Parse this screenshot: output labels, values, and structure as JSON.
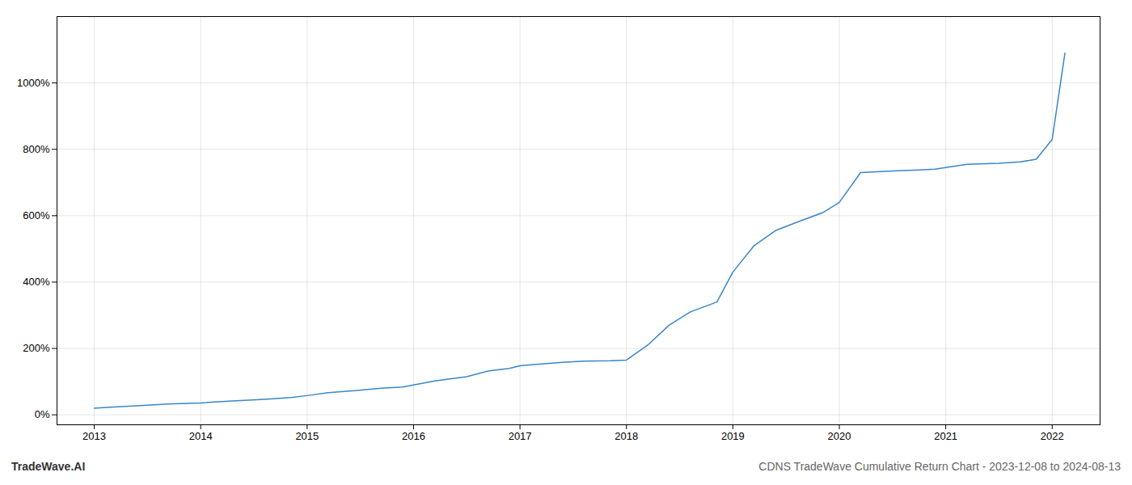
{
  "chart_data": {
    "type": "line",
    "title": "CDNS TradeWave Cumulative Return Chart - 2023-12-08 to 2024-08-13",
    "annotations": [
      "TradeWave.AI"
    ],
    "x": [
      2013.0,
      2013.15,
      2013.4,
      2013.7,
      2014.0,
      2014.3,
      2014.6,
      2014.85,
      2015.0,
      2015.2,
      2015.45,
      2015.7,
      2015.9,
      2016.0,
      2016.2,
      2016.5,
      2016.7,
      2016.9,
      2017.0,
      2017.15,
      2017.4,
      2017.6,
      2017.85,
      2018.0,
      2018.2,
      2018.4,
      2018.6,
      2018.85,
      2019.0,
      2019.2,
      2019.4,
      2019.6,
      2019.85,
      2020.0,
      2020.2,
      2020.5,
      2020.75,
      2020.9,
      2021.0,
      2021.2,
      2021.5,
      2021.7,
      2021.85,
      2022.0,
      2022.12
    ],
    "values": [
      20,
      23,
      27,
      33,
      36,
      42,
      47,
      52,
      58,
      67,
      73,
      80,
      84,
      90,
      102,
      115,
      132,
      140,
      148,
      152,
      158,
      162,
      163,
      165,
      210,
      270,
      310,
      340,
      430,
      510,
      555,
      580,
      610,
      640,
      730,
      735,
      738,
      740,
      745,
      755,
      758,
      762,
      770,
      830,
      1090
    ],
    "color": "#3a86c8",
    "xlim": [
      2012.65,
      2022.45
    ],
    "xticks": [
      2013,
      2014,
      2015,
      2016,
      2017,
      2018,
      2019,
      2020,
      2021,
      2022
    ],
    "ylim": [
      -30,
      1200
    ],
    "yticks": [
      {
        "value": 0,
        "label": "0%"
      },
      {
        "value": 200,
        "label": "200%"
      },
      {
        "value": 400,
        "label": "400%"
      },
      {
        "value": 600,
        "label": "600%"
      },
      {
        "value": 800,
        "label": "800%"
      },
      {
        "value": 1000,
        "label": "1000%"
      }
    ],
    "grid": true
  }
}
